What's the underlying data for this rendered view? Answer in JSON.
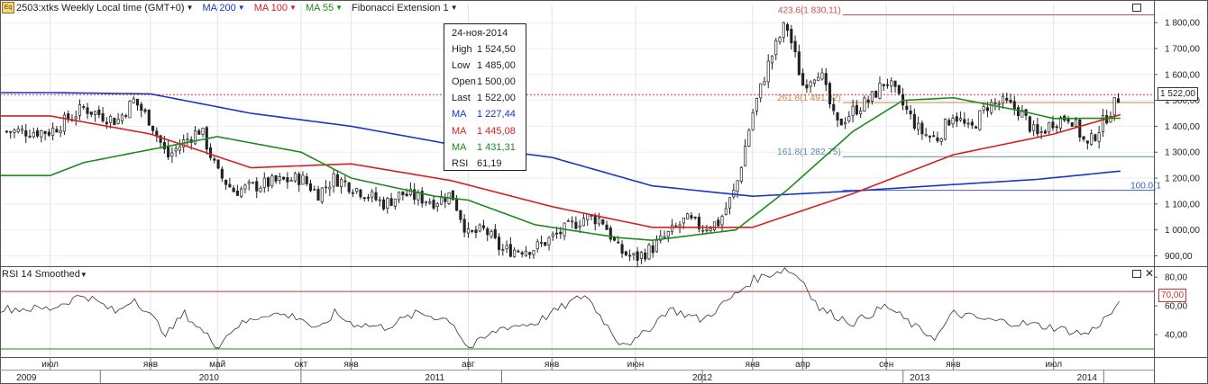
{
  "header": {
    "symbol_icon": "Eq",
    "symbol_label": "2503:xtks Weekly Local time (GMT+0)",
    "indicators": [
      {
        "label": "MA 200",
        "color": "#1a35c8"
      },
      {
        "label": "MA 100",
        "color": "#d81e1e"
      },
      {
        "label": "MA 55",
        "color": "#1d8a1d"
      },
      {
        "label": "Fibonacci Extension 1",
        "color": "#222222"
      }
    ]
  },
  "rsi_panel": {
    "title": "RSI 14 Smoothed"
  },
  "tooltip": {
    "date": "24-ноя-2014",
    "rows": [
      {
        "k": "High",
        "v": "1 524,50",
        "color": "#222222"
      },
      {
        "k": "Low",
        "v": "1 485,00",
        "color": "#222222"
      },
      {
        "k": "Open",
        "v": "1 500,00",
        "color": "#222222"
      },
      {
        "k": "Last",
        "v": "1 522,00",
        "color": "#222222"
      },
      {
        "k": "MA",
        "v": "1 227,44",
        "color": "#1a35c8"
      },
      {
        "k": "MA",
        "v": "1 445,08",
        "color": "#d81e1e"
      },
      {
        "k": "MA",
        "v": "1 431,31",
        "color": "#1d8a1d"
      },
      {
        "k": "RSI",
        "v": "61,19",
        "color": "#222222"
      }
    ]
  },
  "chart_data": {
    "type": "candlestick",
    "price_axis": {
      "ticks": [
        "900,00",
        "1 000,00",
        "1 100,00",
        "1 200,00",
        "1 300,00",
        "1 400,00",
        "1 500,00",
        "1 600,00",
        "1 700,00",
        "1 800,00"
      ],
      "ylim": [
        860,
        1870
      ]
    },
    "last_price_label": "1 522,00",
    "last_price": 1522,
    "fib_levels": [
      {
        "label": "423.6(1 830,11)",
        "value": 1830.11,
        "color": "#d05050"
      },
      {
        "label": "261.8(1 491,82)",
        "value": 1491.82,
        "color": "#d08050"
      },
      {
        "label": "161.8(1 282,75)",
        "value": 1282.75,
        "color": "#5a8aa0"
      },
      {
        "label": "100.0(1",
        "value": 1153,
        "color": "#4060d0"
      }
    ],
    "x_months": [
      "июл",
      "янв",
      "май",
      "окт",
      "янв",
      "авг",
      "янв",
      "июн",
      "янв",
      "апр",
      "сен",
      "янв",
      "июл"
    ],
    "x_years": [
      "2009",
      "2010",
      "2011",
      "2012",
      "2013",
      "2014"
    ],
    "price_anchors": [
      [
        "2009-07",
        1380
      ],
      [
        "2009-09",
        1470
      ],
      [
        "2009-11",
        1420
      ],
      [
        "2009-12",
        1500
      ],
      [
        "2010-01",
        1420
      ],
      [
        "2010-02",
        1280
      ],
      [
        "2010-03",
        1340
      ],
      [
        "2010-04",
        1390
      ],
      [
        "2010-05",
        1220
      ],
      [
        "2010-06",
        1150
      ],
      [
        "2010-08",
        1180
      ],
      [
        "2010-10",
        1200
      ],
      [
        "2010-11",
        1140
      ],
      [
        "2010-12",
        1200
      ],
      [
        "2011-01",
        1170
      ],
      [
        "2011-03",
        1100
      ],
      [
        "2011-04",
        1140
      ],
      [
        "2011-06",
        1110
      ],
      [
        "2011-07",
        1140
      ],
      [
        "2011-08",
        980
      ],
      [
        "2011-09",
        1000
      ],
      [
        "2011-10",
        920
      ],
      [
        "2011-12",
        930
      ],
      [
        "2012-01",
        970
      ],
      [
        "2012-03",
        1050
      ],
      [
        "2012-04",
        1040
      ],
      [
        "2012-05",
        920
      ],
      [
        "2012-06",
        890
      ],
      [
        "2012-07",
        930
      ],
      [
        "2012-09",
        1040
      ],
      [
        "2012-10",
        1010
      ],
      [
        "2012-11",
        1030
      ],
      [
        "2012-12",
        1160
      ],
      [
        "2013-01",
        1450
      ],
      [
        "2013-02",
        1650
      ],
      [
        "2013-03",
        1800
      ],
      [
        "2013-04",
        1560
      ],
      [
        "2013-05",
        1620
      ],
      [
        "2013-06",
        1400
      ],
      [
        "2013-07",
        1460
      ],
      [
        "2013-08",
        1500
      ],
      [
        "2013-09",
        1580
      ],
      [
        "2013-10",
        1480
      ],
      [
        "2013-11",
        1380
      ],
      [
        "2013-12",
        1350
      ],
      [
        "2014-01",
        1450
      ],
      [
        "2014-02",
        1380
      ],
      [
        "2014-03",
        1480
      ],
      [
        "2014-04",
        1490
      ],
      [
        "2014-05",
        1460
      ],
      [
        "2014-06",
        1360
      ],
      [
        "2014-07",
        1420
      ],
      [
        "2014-08",
        1440
      ],
      [
        "2014-09",
        1320
      ],
      [
        "2014-10",
        1420
      ],
      [
        "2014-11",
        1522
      ]
    ],
    "ma200": [
      [
        "2009-07",
        1530
      ],
      [
        "2010-01",
        1525
      ],
      [
        "2010-07",
        1450
      ],
      [
        "2011-01",
        1400
      ],
      [
        "2011-07",
        1330
      ],
      [
        "2012-01",
        1280
      ],
      [
        "2012-07",
        1170
      ],
      [
        "2013-01",
        1130
      ],
      [
        "2013-07",
        1150
      ],
      [
        "2014-01",
        1175
      ],
      [
        "2014-06",
        1195
      ],
      [
        "2014-11",
        1227
      ]
    ],
    "ma100": [
      [
        "2009-07",
        1440
      ],
      [
        "2010-01",
        1370
      ],
      [
        "2010-07",
        1240
      ],
      [
        "2011-01",
        1255
      ],
      [
        "2011-07",
        1190
      ],
      [
        "2012-01",
        1090
      ],
      [
        "2012-07",
        1010
      ],
      [
        "2013-01",
        1010
      ],
      [
        "2013-07",
        1140
      ],
      [
        "2014-01",
        1290
      ],
      [
        "2014-07",
        1370
      ],
      [
        "2014-11",
        1445
      ]
    ],
    "ma55": [
      [
        "2009-07",
        1210
      ],
      [
        "2009-09",
        1260
      ],
      [
        "2010-01",
        1310
      ],
      [
        "2010-05",
        1360
      ],
      [
        "2010-10",
        1300
      ],
      [
        "2011-01",
        1200
      ],
      [
        "2011-06",
        1130
      ],
      [
        "2011-08",
        1115
      ],
      [
        "2011-12",
        1020
      ],
      [
        "2012-05",
        970
      ],
      [
        "2012-07",
        960
      ],
      [
        "2012-12",
        1000
      ],
      [
        "2013-03",
        1150
      ],
      [
        "2013-07",
        1380
      ],
      [
        "2013-10",
        1500
      ],
      [
        "2014-01",
        1510
      ],
      [
        "2014-05",
        1460
      ],
      [
        "2014-07",
        1430
      ],
      [
        "2014-11",
        1431
      ]
    ],
    "rsi": {
      "ticks": [
        "40,00",
        "60,00",
        "80,00"
      ],
      "ylim": [
        25,
        87
      ],
      "levels": [
        {
          "label": "70,00",
          "value": 70
        },
        {
          "value": 30
        }
      ],
      "anchors": [
        [
          "2009-07",
          58
        ],
        [
          "2009-09",
          68
        ],
        [
          "2009-11",
          55
        ],
        [
          "2009-12",
          66
        ],
        [
          "2010-02",
          40
        ],
        [
          "2010-03",
          55
        ],
        [
          "2010-05",
          32
        ],
        [
          "2010-06",
          45
        ],
        [
          "2010-08",
          55
        ],
        [
          "2010-10",
          52
        ],
        [
          "2010-11",
          42
        ],
        [
          "2010-12",
          55
        ],
        [
          "2011-01",
          48
        ],
        [
          "2011-03",
          45
        ],
        [
          "2011-05",
          55
        ],
        [
          "2011-07",
          50
        ],
        [
          "2011-08",
          30
        ],
        [
          "2011-10",
          45
        ],
        [
          "2011-12",
          48
        ],
        [
          "2012-01",
          55
        ],
        [
          "2012-03",
          68
        ],
        [
          "2012-05",
          35
        ],
        [
          "2012-06",
          35
        ],
        [
          "2012-08",
          58
        ],
        [
          "2012-10",
          50
        ],
        [
          "2012-12",
          68
        ],
        [
          "2013-01",
          78
        ],
        [
          "2013-03",
          86
        ],
        [
          "2013-04",
          78
        ],
        [
          "2013-05",
          58
        ],
        [
          "2013-07",
          48
        ],
        [
          "2013-09",
          60
        ],
        [
          "2013-11",
          43
        ],
        [
          "2013-12",
          38
        ],
        [
          "2014-01",
          55
        ],
        [
          "2014-03",
          50
        ],
        [
          "2014-05",
          48
        ],
        [
          "2014-07",
          45
        ],
        [
          "2014-09",
          40
        ],
        [
          "2014-11",
          61
        ]
      ]
    }
  }
}
